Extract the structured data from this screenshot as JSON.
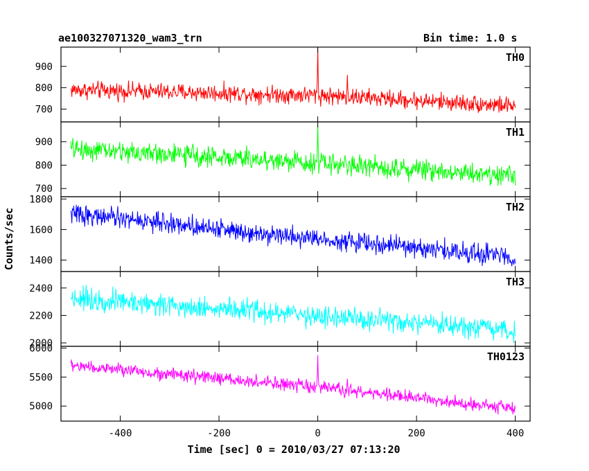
{
  "header": {
    "title": "ae100327071320_wam3_trn",
    "bin_time": "Bin time: 1.0 s"
  },
  "chart_data": {
    "type": "line",
    "title": "ae100327071320_wam3_trn",
    "subtitle": "Bin time: 1.0 s",
    "xlabel": "Time [sec] 0 = 2010/03/27 07:13:20",
    "ylabel": "Counts/sec",
    "xlim": [
      -520,
      430
    ],
    "x_ticks": [
      -400,
      -200,
      0,
      200,
      400
    ],
    "x_sampling": {
      "start": -500,
      "end": 400,
      "step": 1
    },
    "grid": false,
    "legend": "none",
    "panels": [
      {
        "name": "TH0",
        "color": "#ff0000",
        "ylim": [
          640,
          990
        ],
        "y_ticks": [
          700,
          800,
          900
        ],
        "trend": [
          {
            "x": -500,
            "y": 790
          },
          {
            "x": 0,
            "y": 765
          },
          {
            "x": 400,
            "y": 715
          }
        ],
        "noise_amplitude": 35,
        "spikes": [
          {
            "x": 0,
            "y": 990
          },
          {
            "x": 60,
            "y": 860
          }
        ]
      },
      {
        "name": "TH1",
        "color": "#00ff00",
        "ylim": [
          665,
          985
        ],
        "y_ticks": [
          700,
          800,
          900
        ],
        "trend": [
          {
            "x": -500,
            "y": 870
          },
          {
            "x": 0,
            "y": 810
          },
          {
            "x": 400,
            "y": 755
          }
        ],
        "noise_amplitude": 38,
        "spikes": [
          {
            "x": 0,
            "y": 975
          }
        ]
      },
      {
        "name": "TH2",
        "color": "#0000ff",
        "ylim": [
          1325,
          1815
        ],
        "y_ticks": [
          1400,
          1600,
          1800
        ],
        "trend": [
          {
            "x": -500,
            "y": 1705
          },
          {
            "x": 0,
            "y": 1540
          },
          {
            "x": 400,
            "y": 1420
          }
        ],
        "noise_amplitude": 55,
        "spikes": []
      },
      {
        "name": "TH3",
        "color": "#00ffff",
        "ylim": [
          1975,
          2520
        ],
        "y_ticks": [
          2000,
          2200,
          2400
        ],
        "trend": [
          {
            "x": -500,
            "y": 2330
          },
          {
            "x": 0,
            "y": 2195
          },
          {
            "x": 400,
            "y": 2080
          }
        ],
        "noise_amplitude": 70,
        "spikes": []
      },
      {
        "name": "TH0123",
        "color": "#ff00ff",
        "ylim": [
          4740,
          6030
        ],
        "y_ticks": [
          5000,
          5500,
          6000
        ],
        "trend": [
          {
            "x": -500,
            "y": 5700
          },
          {
            "x": 0,
            "y": 5320
          },
          {
            "x": 400,
            "y": 4960
          }
        ],
        "noise_amplitude": 95,
        "spikes": [
          {
            "x": 0,
            "y": 5880
          },
          {
            "x": 60,
            "y": 5470
          }
        ]
      }
    ]
  }
}
